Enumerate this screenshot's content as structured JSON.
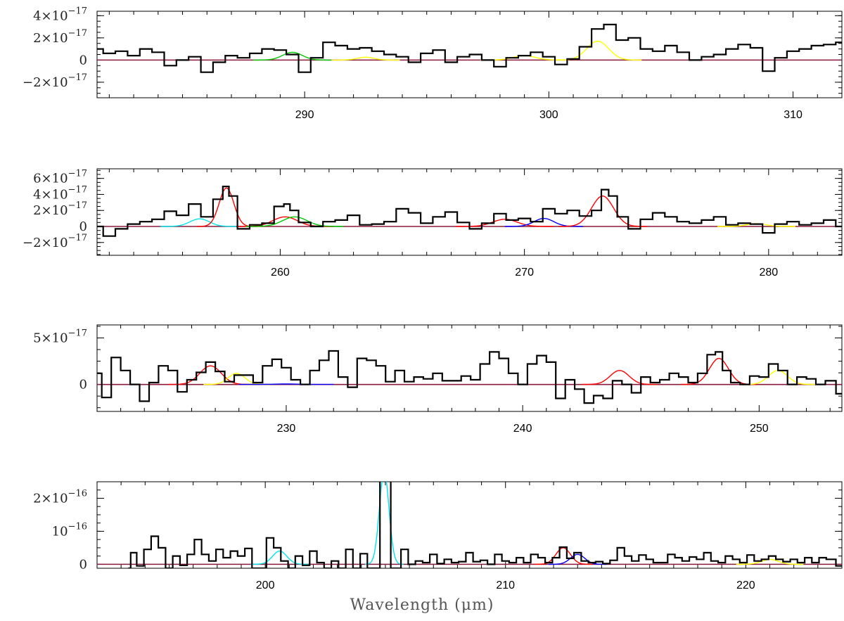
{
  "figure": {
    "xlabel": "Wavelength (μm)",
    "colors": {
      "data": "#000000",
      "baseline": "#8b1a3b",
      "red": "#ff0000",
      "green": "#00cc00",
      "yellow": "#ffff00",
      "cyan": "#00e5ee",
      "blue": "#0000ff"
    }
  },
  "chart_data": [
    {
      "type": "line",
      "panel": 1,
      "xlim": [
        281.5,
        312
      ],
      "ylim": [
        -3.4e-17,
        4.4e-17
      ],
      "xticks": [
        290,
        300,
        310
      ],
      "yticks": [
        {
          "value": 4e-17,
          "mantissa": "4×10",
          "exp": "−17"
        },
        {
          "value": 2e-17,
          "mantissa": "2×10",
          "exp": "−17"
        },
        {
          "value": 0,
          "mantissa": "0",
          "exp": ""
        },
        {
          "value": -2e-17,
          "mantissa": "−2×10",
          "exp": "−17"
        }
      ],
      "spectrum": {
        "x": [
          281.5,
          282.0,
          282.5,
          283.0,
          283.5,
          284.0,
          284.5,
          285.0,
          285.5,
          286.0,
          286.5,
          287.0,
          287.5,
          288.0,
          288.5,
          289.0,
          289.5,
          290.0,
          290.5,
          291.0,
          291.5,
          292.0,
          292.5,
          293.0,
          293.5,
          294.0,
          294.5,
          295.0,
          295.5,
          296.0,
          296.5,
          297.0,
          297.5,
          298.0,
          298.5,
          299.0,
          299.5,
          300.0,
          300.5,
          301.0,
          301.5,
          302.0,
          302.5,
          303.0,
          303.5,
          304.0,
          304.5,
          305.0,
          305.5,
          306.0,
          306.5,
          307.0,
          307.5,
          308.0,
          308.5,
          309.0,
          309.5,
          310.0,
          310.5,
          311.0,
          311.5,
          312.0
        ],
        "y": [
          1.0,
          0.6,
          0.8,
          0.4,
          1.0,
          0.7,
          -0.5,
          0.0,
          0.3,
          -1.1,
          -0.2,
          0.4,
          0.2,
          0.6,
          1.0,
          0.9,
          0.5,
          -1.1,
          0.2,
          1.6,
          1.3,
          1.0,
          1.1,
          0.8,
          0.5,
          0.3,
          -0.2,
          0.6,
          0.9,
          -0.2,
          0.3,
          0.5,
          0.0,
          -0.6,
          0.2,
          0.4,
          0.7,
          0.3,
          -0.4,
          0.1,
          1.2,
          2.8,
          3.2,
          1.8,
          2.0,
          1.0,
          0.8,
          1.3,
          0.7,
          0.0,
          0.3,
          0.5,
          1.0,
          1.4,
          1.1,
          -1.0,
          0.2,
          0.8,
          1.0,
          1.3,
          1.4,
          1.6
        ],
        "scale": 1e-17
      },
      "fits": [
        {
          "color": "green",
          "center": 289.5,
          "sigma": 0.4,
          "amp": 7e-18
        },
        {
          "color": "yellow",
          "center": 292.5,
          "sigma": 0.35,
          "amp": 2.5e-18
        },
        {
          "color": "yellow",
          "center": 299.0,
          "sigma": 0.45,
          "amp": 4e-18
        },
        {
          "color": "yellow",
          "center": 302.0,
          "sigma": 0.45,
          "amp": 1.7e-17
        }
      ]
    },
    {
      "type": "line",
      "panel": 2,
      "xlim": [
        252.5,
        283
      ],
      "ylim": [
        -3.6e-17,
        7.2e-17
      ],
      "xticks": [
        260,
        270,
        280
      ],
      "yticks": [
        {
          "value": 6e-17,
          "mantissa": "6×10",
          "exp": "−17"
        },
        {
          "value": 4e-17,
          "mantissa": "4×10",
          "exp": "−17"
        },
        {
          "value": 2e-17,
          "mantissa": "2×10",
          "exp": "−17"
        },
        {
          "value": 0,
          "mantissa": "0",
          "exp": ""
        },
        {
          "value": -2e-17,
          "mantissa": "−2×10",
          "exp": "−17"
        }
      ],
      "spectrum": {
        "x": [
          252.5,
          253.0,
          253.5,
          254.0,
          254.5,
          255.0,
          255.5,
          256.0,
          256.5,
          257.0,
          257.5,
          257.8,
          258.0,
          258.5,
          259.0,
          259.5,
          260.0,
          260.3,
          260.5,
          261.0,
          261.5,
          262.0,
          262.5,
          263.0,
          263.5,
          264.0,
          264.5,
          265.0,
          265.5,
          266.0,
          266.5,
          267.0,
          267.5,
          268.0,
          268.5,
          269.0,
          269.5,
          270.0,
          270.5,
          271.0,
          271.5,
          272.0,
          272.5,
          273.0,
          273.3,
          273.6,
          274.0,
          274.5,
          275.0,
          275.5,
          276.0,
          276.5,
          277.0,
          277.5,
          278.0,
          278.5,
          279.0,
          279.5,
          280.0,
          280.5,
          281.0,
          281.5,
          282.0,
          282.5,
          283.0
        ],
        "y": [
          0.0,
          -1.2,
          -0.3,
          0.3,
          0.6,
          0.9,
          1.9,
          1.4,
          2.8,
          1.2,
          3.4,
          5.0,
          3.8,
          -0.3,
          0.2,
          0.4,
          2.5,
          2.8,
          2.0,
          0.5,
          0.0,
          0.6,
          0.8,
          1.4,
          0.2,
          0.3,
          0.6,
          2.2,
          1.7,
          0.4,
          1.2,
          1.8,
          0.5,
          -0.3,
          0.4,
          1.6,
          0.8,
          1.0,
          0.6,
          2.2,
          1.6,
          2.0,
          1.3,
          2.0,
          4.6,
          3.8,
          1.2,
          -0.3,
          0.9,
          1.7,
          1.2,
          0.6,
          0.4,
          0.8,
          1.2,
          0.2,
          0.4,
          0.3,
          -0.8,
          0.3,
          0.6,
          0.2,
          0.4,
          0.8,
          0.0
        ],
        "scale": 1e-17
      },
      "fits": [
        {
          "color": "cyan",
          "center": 256.7,
          "sigma": 0.4,
          "amp": 9.5e-18
        },
        {
          "color": "red",
          "center": 257.8,
          "sigma": 0.3,
          "amp": 4.8e-17
        },
        {
          "color": "red",
          "center": 260.2,
          "sigma": 0.5,
          "amp": 1.2e-17
        },
        {
          "color": "green",
          "center": 260.6,
          "sigma": 0.5,
          "amp": 1.2e-17
        },
        {
          "color": "red",
          "center": 269.2,
          "sigma": 0.5,
          "amp": 9e-18
        },
        {
          "color": "blue",
          "center": 270.8,
          "sigma": 0.4,
          "amp": 1e-17
        },
        {
          "color": "red",
          "center": 273.2,
          "sigma": 0.45,
          "amp": 3.8e-17
        },
        {
          "color": "yellow",
          "center": 279.5,
          "sigma": 0.4,
          "amp": 3.5e-18
        }
      ]
    },
    {
      "type": "line",
      "panel": 3,
      "xlim": [
        222,
        253.5
      ],
      "ylim": [
        -2.9e-17,
        6.4e-17
      ],
      "xticks": [
        230,
        240,
        250
      ],
      "yticks": [
        {
          "value": 5e-17,
          "mantissa": "5×10",
          "exp": "−17"
        },
        {
          "value": 0,
          "mantissa": "0",
          "exp": ""
        }
      ],
      "spectrum": {
        "x": [
          222.0,
          222.4,
          222.8,
          223.2,
          223.6,
          224.0,
          224.4,
          224.8,
          225.2,
          225.6,
          226.0,
          226.4,
          226.8,
          227.2,
          227.6,
          228.0,
          228.4,
          228.8,
          229.2,
          229.6,
          230.0,
          230.4,
          230.8,
          231.2,
          231.6,
          232.0,
          232.4,
          232.8,
          233.2,
          233.6,
          234.0,
          234.4,
          234.8,
          235.2,
          235.6,
          236.0,
          236.4,
          236.8,
          237.2,
          237.6,
          238.0,
          238.4,
          238.8,
          239.2,
          239.6,
          240.0,
          240.4,
          240.8,
          241.2,
          241.6,
          242.0,
          242.4,
          242.8,
          243.2,
          243.6,
          244.0,
          244.4,
          244.8,
          245.2,
          245.6,
          246.0,
          246.4,
          246.8,
          247.2,
          247.6,
          248.0,
          248.3,
          248.6,
          249.0,
          249.4,
          249.8,
          250.2,
          250.6,
          251.0,
          251.4,
          251.8,
          252.2,
          252.6,
          253.0,
          253.5
        ],
        "y": [
          1.2,
          -1.4,
          2.9,
          1.5,
          0.0,
          -1.8,
          0.2,
          2.0,
          1.5,
          -0.8,
          0.5,
          1.3,
          2.4,
          1.4,
          0.3,
          1.0,
          1.0,
          0.2,
          2.0,
          2.7,
          1.8,
          0.5,
          0.0,
          1.5,
          2.6,
          3.6,
          0.8,
          -0.3,
          2.8,
          2.6,
          2.0,
          0.3,
          1.5,
          0.3,
          0.8,
          0.6,
          1.2,
          0.4,
          0.4,
          0.9,
          0.5,
          2.2,
          3.5,
          2.8,
          1.2,
          0.0,
          2.2,
          3.1,
          2.4,
          -1.5,
          0.5,
          -0.5,
          -2.0,
          -1.2,
          -1.5,
          0.4,
          0.0,
          -0.9,
          0.8,
          0.2,
          0.5,
          1.2,
          0.8,
          0.2,
          1.2,
          3.2,
          3.5,
          1.5,
          0.2,
          0.0,
          0.9,
          0.8,
          2.2,
          1.5,
          0.0,
          0.8,
          0.6,
          0.0,
          0.4,
          -1.0
        ],
        "scale": 1e-17
      },
      "fits": [
        {
          "color": "red",
          "center": 226.8,
          "sigma": 0.45,
          "amp": 2e-17
        },
        {
          "color": "yellow",
          "center": 227.9,
          "sigma": 0.35,
          "amp": 1.2e-17
        },
        {
          "color": "blue",
          "center": 230.0,
          "sigma": 0.5,
          "amp": 5e-19
        },
        {
          "color": "red",
          "center": 244.1,
          "sigma": 0.4,
          "amp": 1.5e-17
        },
        {
          "color": "red",
          "center": 248.3,
          "sigma": 0.4,
          "amp": 2.8e-17
        },
        {
          "color": "yellow",
          "center": 250.8,
          "sigma": 0.4,
          "amp": 1.5e-17
        }
      ]
    },
    {
      "type": "line",
      "panel": 4,
      "xlim": [
        193,
        224
      ],
      "ylim": [
        -1.2e-17,
        2.5e-16
      ],
      "xticks": [
        200,
        210,
        220
      ],
      "yticks": [
        {
          "value": 2e-16,
          "mantissa": "2×10",
          "exp": "−16"
        },
        {
          "value": 1e-16,
          "mantissa": "10",
          "exp": "−16"
        },
        {
          "value": 0,
          "mantissa": "0",
          "exp": ""
        }
      ],
      "spectrum": {
        "x": [
          194.3,
          194.5,
          194.8,
          195.1,
          195.4,
          195.7,
          196.0,
          196.3,
          196.6,
          196.9,
          197.2,
          197.5,
          197.8,
          198.1,
          198.4,
          198.7,
          199.0,
          199.3,
          199.6,
          199.9,
          200.2,
          200.5,
          200.8,
          201.1,
          201.4,
          201.7,
          202.0,
          202.3,
          202.6,
          202.9,
          203.2,
          203.5,
          203.8,
          204.1,
          204.4,
          204.7,
          204.85,
          205.0,
          205.15,
          205.3,
          205.5,
          205.8,
          206.1,
          206.4,
          206.7,
          207.0,
          207.3,
          207.6,
          207.9,
          208.2,
          208.5,
          208.8,
          209.1,
          209.4,
          209.7,
          210.0,
          210.3,
          210.6,
          210.9,
          211.2,
          211.5,
          211.8,
          212.1,
          212.4,
          212.7,
          213.0,
          213.3,
          213.6,
          213.9,
          214.2,
          214.5,
          214.8,
          215.1,
          215.4,
          215.7,
          216.0,
          216.3,
          216.6,
          216.9,
          217.2,
          217.5,
          217.8,
          218.1,
          218.4,
          218.7,
          219.0,
          219.3,
          219.6,
          219.9,
          220.2,
          220.5,
          220.8,
          221.1,
          221.4,
          221.7,
          222.0,
          222.3,
          222.6,
          222.9,
          223.2,
          223.5,
          224.0
        ],
        "y": [
          -1.2,
          3.5,
          -0.5,
          4.5,
          8.5,
          5.0,
          -1.2,
          2.5,
          -0.3,
          3.0,
          7.5,
          3.0,
          1.0,
          4.5,
          2.0,
          4.0,
          2.5,
          4.8,
          -1.2,
          -1.2,
          8.0,
          5.0,
          1.0,
          -1.2,
          2.5,
          -0.3,
          4.0,
          0.5,
          -1.2,
          1.0,
          -1.2,
          4.5,
          -1.2,
          3.2,
          -1.2,
          -1.2,
          26.0,
          26.0,
          26.0,
          -1.2,
          -1.2,
          4.5,
          0.0,
          1.0,
          0.5,
          3.0,
          0.2,
          1.5,
          0.5,
          0.8,
          3.5,
          0.8,
          1.2,
          0.0,
          3.0,
          1.0,
          0.5,
          2.0,
          0.5,
          3.0,
          2.0,
          0.5,
          2.0,
          5.2,
          1.8,
          3.5,
          1.0,
          0.5,
          0.8,
          0.2,
          1.2,
          5.0,
          2.5,
          1.0,
          2.8,
          1.5,
          0.5,
          0.5,
          3.0,
          2.0,
          1.0,
          2.2,
          1.5,
          3.5,
          1.0,
          0.5,
          2.5,
          1.5,
          0.5,
          2.8,
          1.0,
          1.5,
          2.5,
          1.5,
          0.8,
          1.5,
          0.5,
          2.0,
          0.5,
          2.0,
          1.5,
          -0.5
        ],
        "scale": 1e-17
      },
      "fits": [
        {
          "color": "cyan",
          "center": 200.6,
          "sigma": 0.3,
          "amp": 4e-17
        },
        {
          "color": "cyan",
          "center": 204.95,
          "sigma": 0.2,
          "amp": 2.8e-16
        },
        {
          "color": "red",
          "center": 212.4,
          "sigma": 0.3,
          "amp": 5e-17
        },
        {
          "color": "blue",
          "center": 213.0,
          "sigma": 0.3,
          "amp": 3e-17
        },
        {
          "color": "yellow",
          "center": 221.0,
          "sigma": 0.35,
          "amp": 1.5e-17
        }
      ]
    }
  ]
}
